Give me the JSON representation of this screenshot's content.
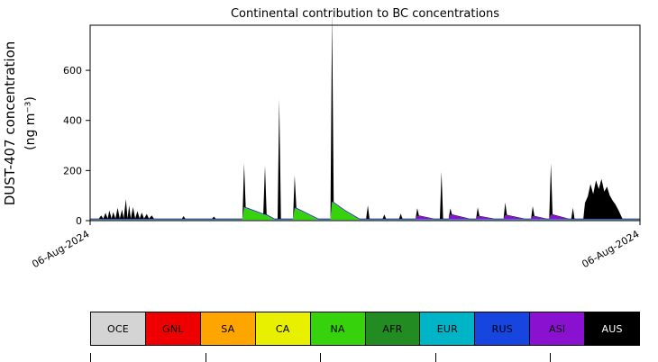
{
  "figure": {
    "title": "Continental contribution to BC concentrations",
    "ylabel_line1": "DUST-407 concentration",
    "ylabel_line2": "(ng m⁻³)"
  },
  "chart_data": {
    "type": "area",
    "stacked": true,
    "title": "Continental contribution to BC concentrations",
    "xlabel": "",
    "ylabel": "DUST-407 concentration (ng m⁻³)",
    "ylim": [
      0,
      780
    ],
    "yticks": [
      0,
      200,
      400,
      600
    ],
    "x_axis": {
      "tick_positions": [
        0,
        1
      ],
      "tick_labels": [
        "06-Aug-2024",
        "06-Aug-2024"
      ]
    },
    "grid": false,
    "legend_position": "bottom",
    "series_order": [
      "OCE",
      "GNL",
      "SA",
      "CA",
      "NA",
      "AFR",
      "EUR",
      "RUS",
      "ASI",
      "AUS"
    ],
    "colors": {
      "OCE": "#d4d4d4",
      "GNL": "#ee0000",
      "SA": "#ffa500",
      "CA": "#e8f000",
      "NA": "#36d30c",
      "AFR": "#228b22",
      "EUR": "#00b4c8",
      "RUS": "#1745e0",
      "ASI": "#8a11d0",
      "AUS": "#000000"
    },
    "baseline": {
      "OCE": 3,
      "EUR": 1,
      "RUS": 2,
      "AUS": 2
    },
    "points": [
      {
        "t": 0.0
      },
      {
        "t": 0.016
      },
      {
        "t": 0.02,
        "AUS": 15
      },
      {
        "t": 0.024
      },
      {
        "t": 0.028,
        "AUS": 25
      },
      {
        "t": 0.032
      },
      {
        "t": 0.035,
        "AUS": 35
      },
      {
        "t": 0.039
      },
      {
        "t": 0.042,
        "AUS": 28
      },
      {
        "t": 0.046
      },
      {
        "t": 0.05,
        "AUS": 45
      },
      {
        "t": 0.054
      },
      {
        "t": 0.058,
        "AUS": 38
      },
      {
        "t": 0.061
      },
      {
        "t": 0.065,
        "AUS": 80
      },
      {
        "t": 0.068
      },
      {
        "t": 0.071,
        "AUS": 55
      },
      {
        "t": 0.074
      },
      {
        "t": 0.078,
        "AUS": 48
      },
      {
        "t": 0.082
      },
      {
        "t": 0.086,
        "AUS": 32
      },
      {
        "t": 0.09
      },
      {
        "t": 0.094,
        "AUS": 26
      },
      {
        "t": 0.098
      },
      {
        "t": 0.103,
        "AUS": 20
      },
      {
        "t": 0.107
      },
      {
        "t": 0.112,
        "AUS": 15
      },
      {
        "t": 0.116
      },
      {
        "t": 0.167
      },
      {
        "t": 0.17,
        "AUS": 12
      },
      {
        "t": 0.173
      },
      {
        "t": 0.222
      },
      {
        "t": 0.225,
        "AUS": 10
      },
      {
        "t": 0.228
      },
      {
        "t": 0.277
      },
      {
        "t": 0.28,
        "AUS": 175,
        "NA": 48
      },
      {
        "t": 0.283,
        "NA": 46
      },
      {
        "t": 0.315,
        "NA": 20
      },
      {
        "t": 0.318,
        "AUS": 195,
        "NA": 19
      },
      {
        "t": 0.321,
        "NA": 17
      },
      {
        "t": 0.335
      },
      {
        "t": 0.341
      },
      {
        "t": 0.344,
        "AUS": 480
      },
      {
        "t": 0.347
      },
      {
        "t": 0.369
      },
      {
        "t": 0.372,
        "AUS": 130,
        "NA": 45
      },
      {
        "t": 0.375,
        "NA": 43
      },
      {
        "t": 0.395,
        "NA": 22
      },
      {
        "t": 0.415
      },
      {
        "t": 0.437
      },
      {
        "t": 0.44,
        "AUS": 755,
        "NA": 70
      },
      {
        "t": 0.443,
        "NA": 66
      },
      {
        "t": 0.465,
        "NA": 32
      },
      {
        "t": 0.49
      },
      {
        "t": 0.502
      },
      {
        "t": 0.505,
        "AUS": 55
      },
      {
        "t": 0.508
      },
      {
        "t": 0.532
      },
      {
        "t": 0.535,
        "AUS": 18
      },
      {
        "t": 0.538
      },
      {
        "t": 0.562
      },
      {
        "t": 0.565,
        "AUS": 22
      },
      {
        "t": 0.568
      },
      {
        "t": 0.592
      },
      {
        "t": 0.595,
        "AUS": 30,
        "ASI": 14
      },
      {
        "t": 0.598,
        "ASI": 13
      },
      {
        "t": 0.625
      },
      {
        "t": 0.636
      },
      {
        "t": 0.639,
        "AUS": 190
      },
      {
        "t": 0.642
      },
      {
        "t": 0.652
      },
      {
        "t": 0.655,
        "AUS": 25,
        "ASI": 18
      },
      {
        "t": 0.658,
        "ASI": 17
      },
      {
        "t": 0.69
      },
      {
        "t": 0.702
      },
      {
        "t": 0.705,
        "AUS": 35,
        "ASI": 12
      },
      {
        "t": 0.708,
        "ASI": 11
      },
      {
        "t": 0.735
      },
      {
        "t": 0.752
      },
      {
        "t": 0.755,
        "AUS": 50,
        "ASI": 16
      },
      {
        "t": 0.758,
        "ASI": 15
      },
      {
        "t": 0.79
      },
      {
        "t": 0.802
      },
      {
        "t": 0.805,
        "AUS": 40,
        "ASI": 12
      },
      {
        "t": 0.808,
        "ASI": 11
      },
      {
        "t": 0.83
      },
      {
        "t": 0.835
      },
      {
        "t": 0.838,
        "AUS": 205,
        "ASI": 18
      },
      {
        "t": 0.841,
        "ASI": 17
      },
      {
        "t": 0.87
      },
      {
        "t": 0.875
      },
      {
        "t": 0.878,
        "AUS": 45
      },
      {
        "t": 0.881
      },
      {
        "t": 0.897
      },
      {
        "t": 0.9,
        "AUS": 65
      },
      {
        "t": 0.905,
        "AUS": 90
      },
      {
        "t": 0.91,
        "AUS": 140
      },
      {
        "t": 0.915,
        "AUS": 100
      },
      {
        "t": 0.92,
        "AUS": 155
      },
      {
        "t": 0.925,
        "AUS": 120
      },
      {
        "t": 0.93,
        "AUS": 160
      },
      {
        "t": 0.935,
        "AUS": 110
      },
      {
        "t": 0.94,
        "AUS": 130
      },
      {
        "t": 0.945,
        "AUS": 95
      },
      {
        "t": 0.95,
        "AUS": 75
      },
      {
        "t": 0.955,
        "AUS": 60
      },
      {
        "t": 0.96,
        "AUS": 40
      },
      {
        "t": 0.968
      },
      {
        "t": 1.0
      }
    ]
  },
  "legend": {
    "items": [
      {
        "label": "OCE",
        "color": "#d4d4d4",
        "text": "#000000"
      },
      {
        "label": "GNL",
        "color": "#ee0000",
        "text": "#000000"
      },
      {
        "label": "SA",
        "color": "#ffa500",
        "text": "#000000"
      },
      {
        "label": "CA",
        "color": "#e8f000",
        "text": "#000000"
      },
      {
        "label": "NA",
        "color": "#36d30c",
        "text": "#000000"
      },
      {
        "label": "AFR",
        "color": "#228b22",
        "text": "#000000"
      },
      {
        "label": "EUR",
        "color": "#00b4c8",
        "text": "#000000"
      },
      {
        "label": "RUS",
        "color": "#1745e0",
        "text": "#000000"
      },
      {
        "label": "ASI",
        "color": "#8a11d0",
        "text": "#000000"
      },
      {
        "label": "AUS",
        "color": "#000000",
        "text": "#ffffff"
      }
    ]
  }
}
